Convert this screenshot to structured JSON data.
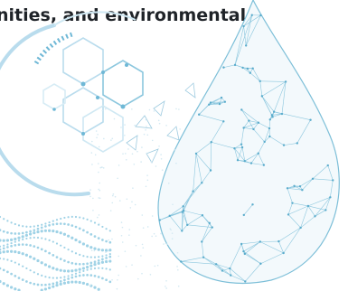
{
  "hero": {
    "headline": "nities, and environmental"
  },
  "palette": {
    "text": "#1f2328",
    "accent": "#6fb8d6",
    "mesh": "#8cc7de",
    "ring": "#b9dced",
    "dots": "#9fd2e6"
  },
  "art": {
    "subject": "low-poly wireframe water droplet with hexagon molecule, circular arc and dotted wave decoration",
    "icons": [
      "water-drop-mesh",
      "hexagon-molecule",
      "circular-arc",
      "dotted-wave"
    ]
  }
}
